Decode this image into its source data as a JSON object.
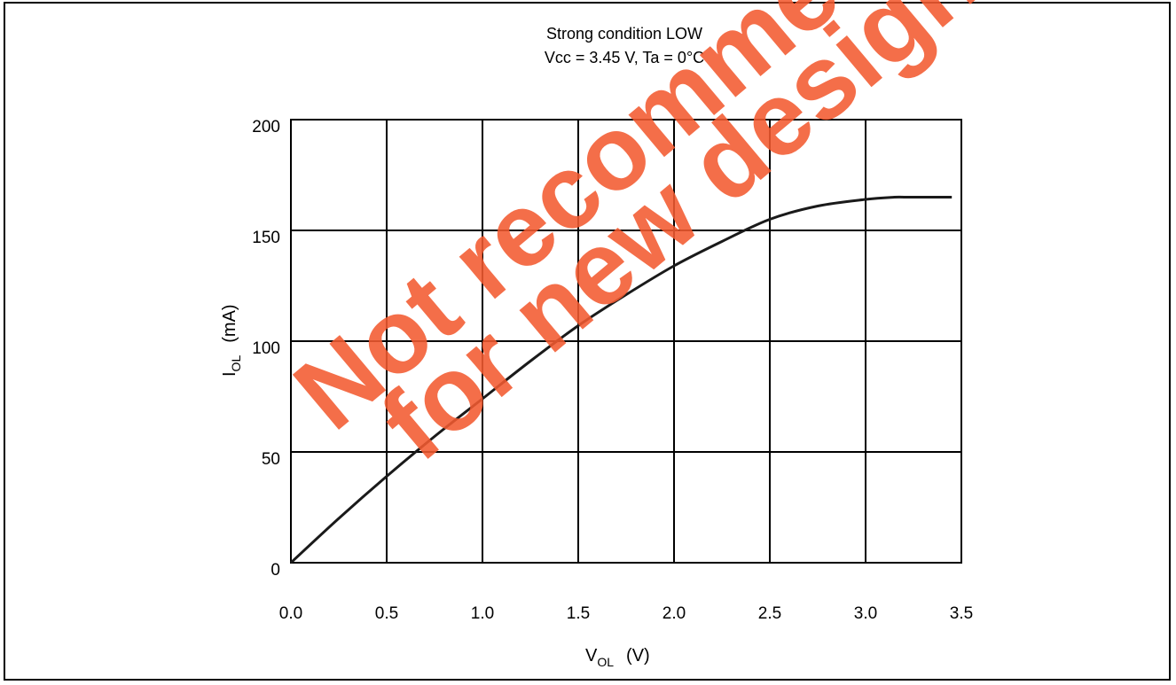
{
  "chart_data": {
    "type": "line",
    "title": "Strong condition LOW",
    "subtitle": "Vcc = 3.45 V, Ta = 0°C",
    "xlabel": {
      "main": "V",
      "sub": "OL",
      "unit": "(V)"
    },
    "ylabel": {
      "main": "I",
      "sub": "OL",
      "unit": "(mA)"
    },
    "xlim": [
      0,
      3.5
    ],
    "ylim": [
      0,
      200
    ],
    "xticks": [
      "0.0",
      "0.5",
      "1.0",
      "1.5",
      "2.0",
      "2.5",
      "3.0",
      "3.5"
    ],
    "yticks": [
      "0",
      "50",
      "100",
      "150",
      "200"
    ],
    "grid": true,
    "series": [
      {
        "x": [
          0.0,
          0.25,
          0.5,
          0.75,
          1.0,
          1.25,
          1.5,
          1.75,
          2.0,
          2.25,
          2.5,
          2.75,
          3.0,
          3.15,
          3.2,
          3.3,
          3.45
        ],
        "y": [
          0,
          20,
          39,
          57,
          74,
          91,
          107,
          121,
          134,
          145,
          155,
          161,
          164,
          165,
          165,
          165,
          165
        ]
      }
    ],
    "colors": {
      "line": "#1a1a1a",
      "grid": "#000000",
      "watermark": "#f35a30"
    }
  },
  "watermark": {
    "line1": "Not recommended",
    "line2": "for new design"
  }
}
